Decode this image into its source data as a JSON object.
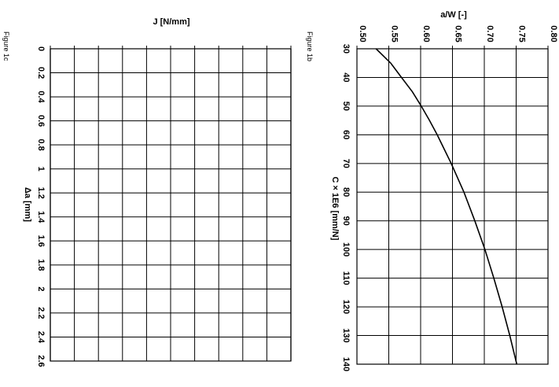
{
  "figure_labels": {
    "left": "Figure 1c",
    "right": "Figure 1b"
  },
  "chart_data": [
    {
      "type": "line",
      "title": "",
      "xlabel": "Δa [mm]",
      "ylabel": "J [N/mm]",
      "xlim": [
        0,
        2.6
      ],
      "x_ticks": [
        "0",
        "0.2",
        "0.4",
        "0.6",
        "0.8",
        "1",
        "1.2",
        "1.4",
        "1.6",
        "1.8",
        "2",
        "2.2",
        "2.4",
        "2.6"
      ],
      "y_ticks": [],
      "series": [],
      "grid": true,
      "rotation": "rotated 90° clockwise"
    },
    {
      "type": "line",
      "title": "",
      "xlabel": "C × 1E6 [mm/N]",
      "ylabel": "a/W [-]",
      "xlim": [
        30,
        140
      ],
      "ylim": [
        0.5,
        0.8
      ],
      "x_ticks": [
        "30",
        "40",
        "50",
        "60",
        "70",
        "80",
        "90",
        "100",
        "110",
        "120",
        "130",
        "140"
      ],
      "y_ticks": [
        "0.50",
        "0.55",
        "0.60",
        "0.65",
        "0.70",
        "0.75",
        "0.80"
      ],
      "series": [
        {
          "x": [
            30,
            35,
            40,
            45,
            50,
            55,
            60,
            65,
            70,
            80,
            90,
            100,
            110,
            120,
            130,
            140
          ],
          "y": [
            0.53,
            0.553,
            0.57,
            0.587,
            0.601,
            0.614,
            0.626,
            0.637,
            0.648,
            0.668,
            0.685,
            0.701,
            0.715,
            0.728,
            0.74,
            0.751
          ]
        }
      ],
      "grid": true,
      "rotation": "rotated 90° clockwise"
    }
  ]
}
